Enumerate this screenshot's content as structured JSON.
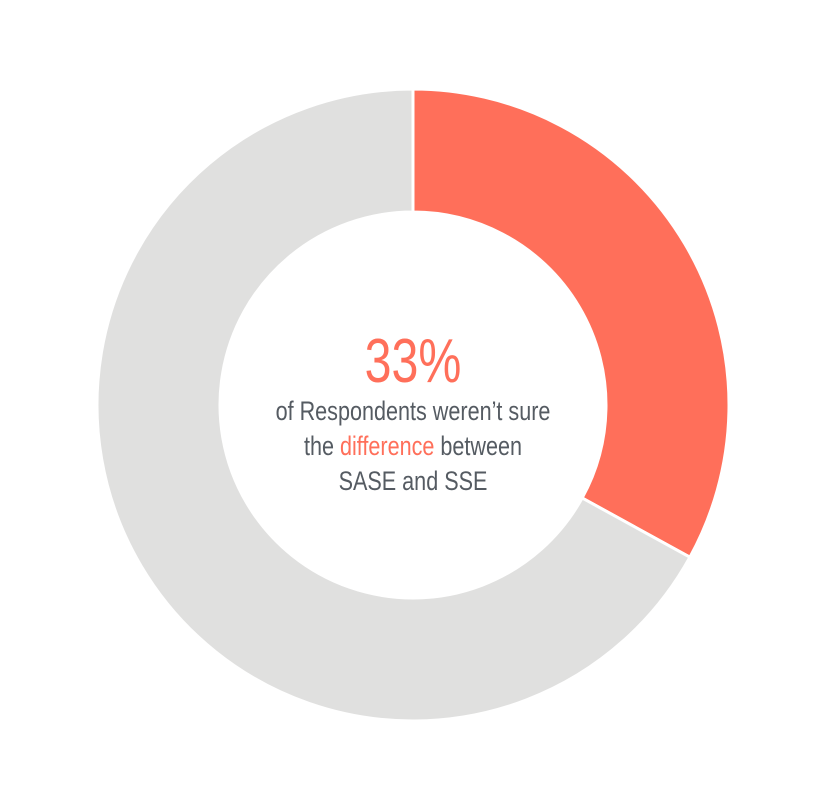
{
  "chart_data": {
    "type": "donut",
    "categories": [
      null,
      null
    ],
    "values": [
      33,
      67
    ],
    "value_labels": [
      "33%",
      null
    ],
    "colors": [
      "#ff6f5a",
      "#e0e0df"
    ],
    "annotation": [
      [
        {
          "text": "of Respondents weren’t sure",
          "color": "#555b62"
        }
      ],
      [
        {
          "text": "the ",
          "color": "#555b62"
        },
        {
          "text": "difference",
          "color": "#ff6f5a"
        },
        {
          "text": " between",
          "color": "#555b62"
        }
      ],
      [
        {
          "text": "SASE and SSE",
          "color": "#555b62"
        }
      ]
    ]
  }
}
